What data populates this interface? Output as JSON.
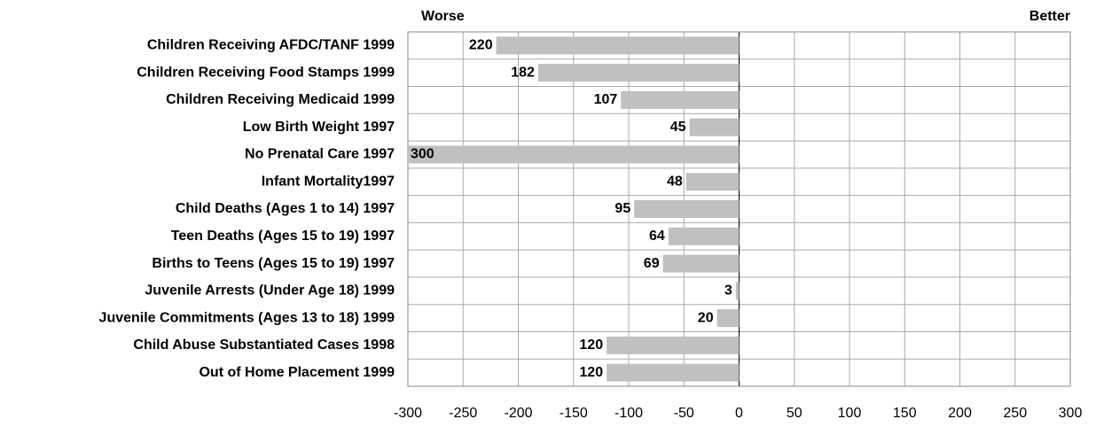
{
  "chart_data": {
    "type": "bar",
    "orientation": "horizontal",
    "annotations": [
      "Worse",
      "Better"
    ],
    "categories": [
      "Children Receiving AFDC/TANF 1999",
      "Children Receiving Food Stamps 1999",
      "Children Receiving Medicaid 1999",
      "Low Birth Weight 1997",
      "No Prenatal Care 1997",
      "Infant Mortality1997",
      "Child Deaths (Ages 1 to 14) 1997",
      "Teen Deaths (Ages 15 to 19) 1997",
      "Births to Teens (Ages 15 to 19) 1997",
      "Juvenile Arrests (Under Age 18) 1999",
      "Juvenile Commitments (Ages 13 to 18) 1999",
      "Child Abuse Substantiated Cases 1998",
      "Out of Home Placement 1999"
    ],
    "values": [
      -220,
      -182,
      -107,
      -45,
      -300,
      -48,
      -95,
      -64,
      -69,
      -3,
      -20,
      -120,
      -120
    ],
    "value_labels": [
      "220",
      "182",
      "107",
      "45",
      "300",
      "48",
      "95",
      "64",
      "69",
      "3",
      "20",
      "120",
      "120"
    ],
    "color": "#c0c0c0",
    "xlim": [
      -300,
      300
    ],
    "xticks": [
      -300,
      -250,
      -200,
      -150,
      -100,
      -50,
      0,
      50,
      100,
      150,
      200,
      250,
      300
    ],
    "grid": true
  }
}
